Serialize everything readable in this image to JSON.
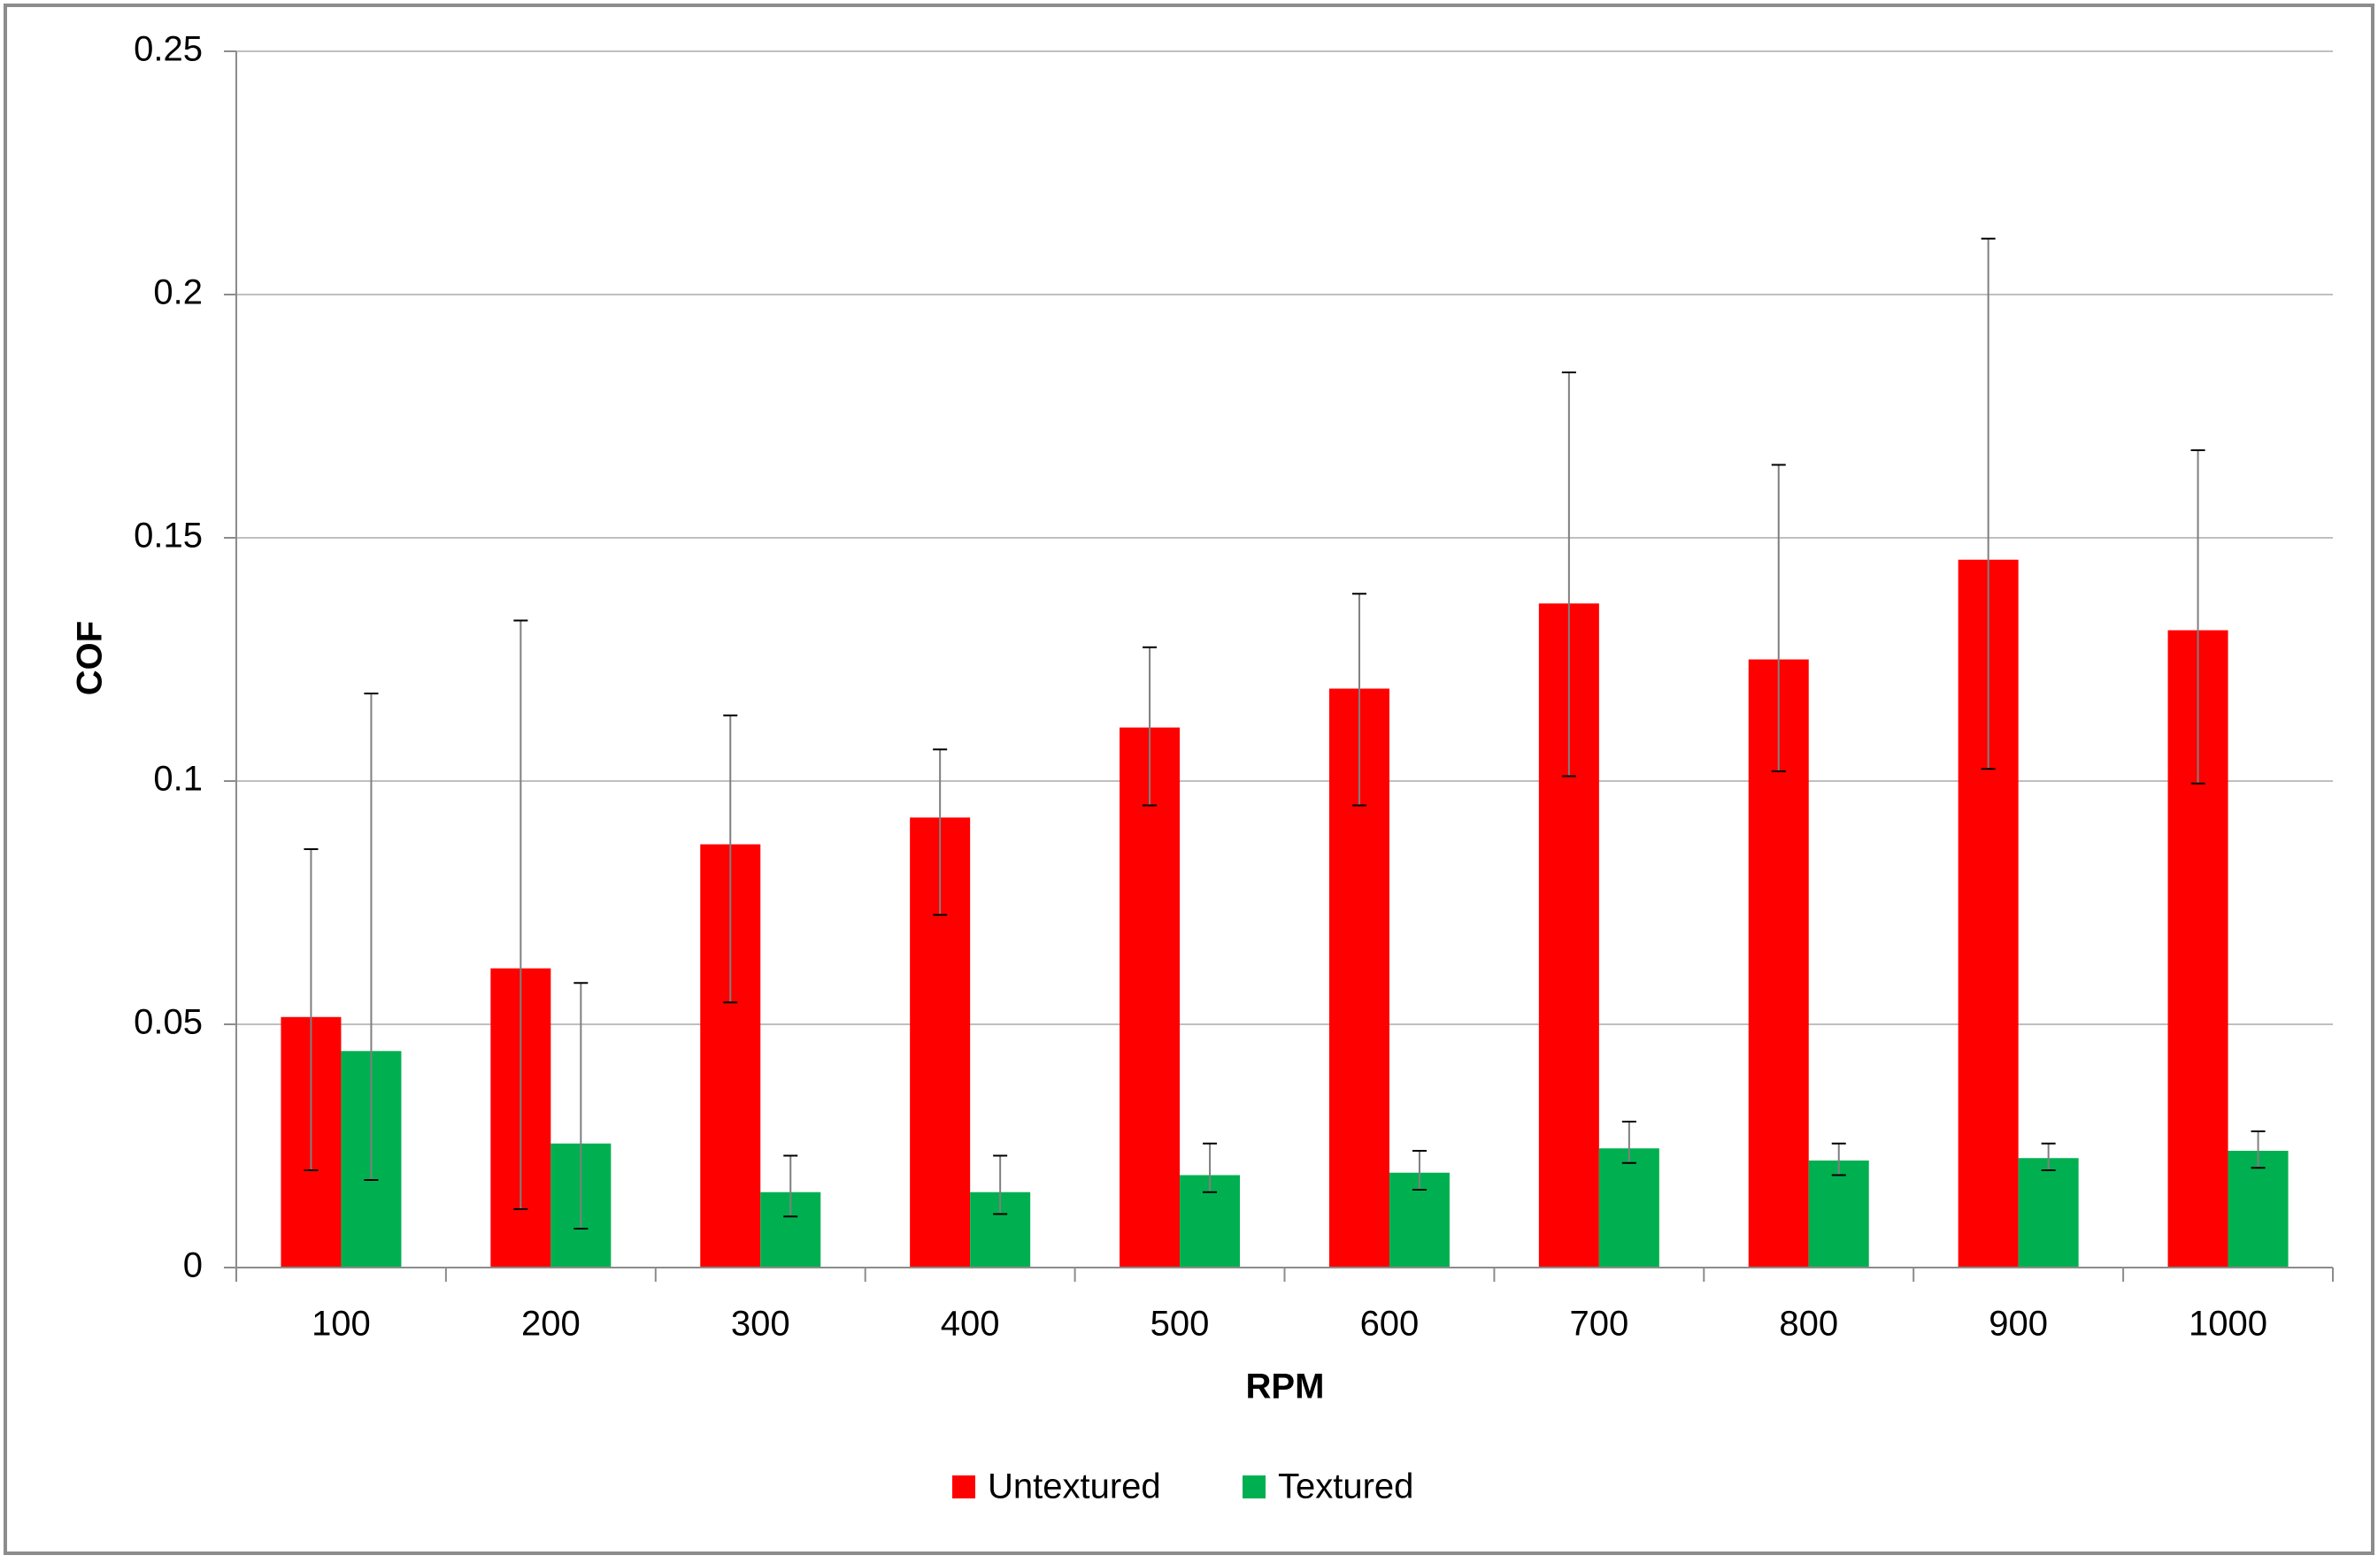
{
  "chart_data": {
    "type": "bar",
    "title": "",
    "xlabel": "RPM",
    "ylabel": "COF",
    "categories": [
      "100",
      "200",
      "300",
      "400",
      "500",
      "600",
      "700",
      "800",
      "900",
      "1000"
    ],
    "series": [
      {
        "name": "Untextured",
        "color": "#ff0000",
        "values": [
          0.0515,
          0.0615,
          0.087,
          0.0925,
          0.111,
          0.119,
          0.1365,
          0.125,
          0.1455,
          0.131
        ],
        "error_low": [
          0.02,
          0.012,
          0.0545,
          0.0725,
          0.095,
          0.095,
          0.101,
          0.102,
          0.1025,
          0.0995
        ],
        "error_high": [
          0.086,
          0.133,
          0.1135,
          0.1065,
          0.1275,
          0.1385,
          0.184,
          0.165,
          0.2115,
          0.168
        ]
      },
      {
        "name": "Textured",
        "color": "#00b050",
        "values": [
          0.0445,
          0.0255,
          0.0155,
          0.0155,
          0.019,
          0.0195,
          0.0245,
          0.022,
          0.0225,
          0.024
        ],
        "error_low": [
          0.018,
          0.008,
          0.0105,
          0.011,
          0.0155,
          0.016,
          0.0215,
          0.019,
          0.02,
          0.0205
        ],
        "error_high": [
          0.118,
          0.0585,
          0.023,
          0.023,
          0.0255,
          0.024,
          0.03,
          0.0255,
          0.0255,
          0.028
        ]
      }
    ],
    "ylim": [
      0,
      0.25
    ],
    "yticks": [
      "0",
      "0.05",
      "0.1",
      "0.15",
      "0.2",
      "0.25"
    ],
    "ytick_values": [
      0,
      0.05,
      0.1,
      0.15,
      0.2,
      0.25
    ],
    "grid": true,
    "legend_position": "bottom-center",
    "gridline_color": "#bfbfbf",
    "errorbar_color": "#000000"
  }
}
